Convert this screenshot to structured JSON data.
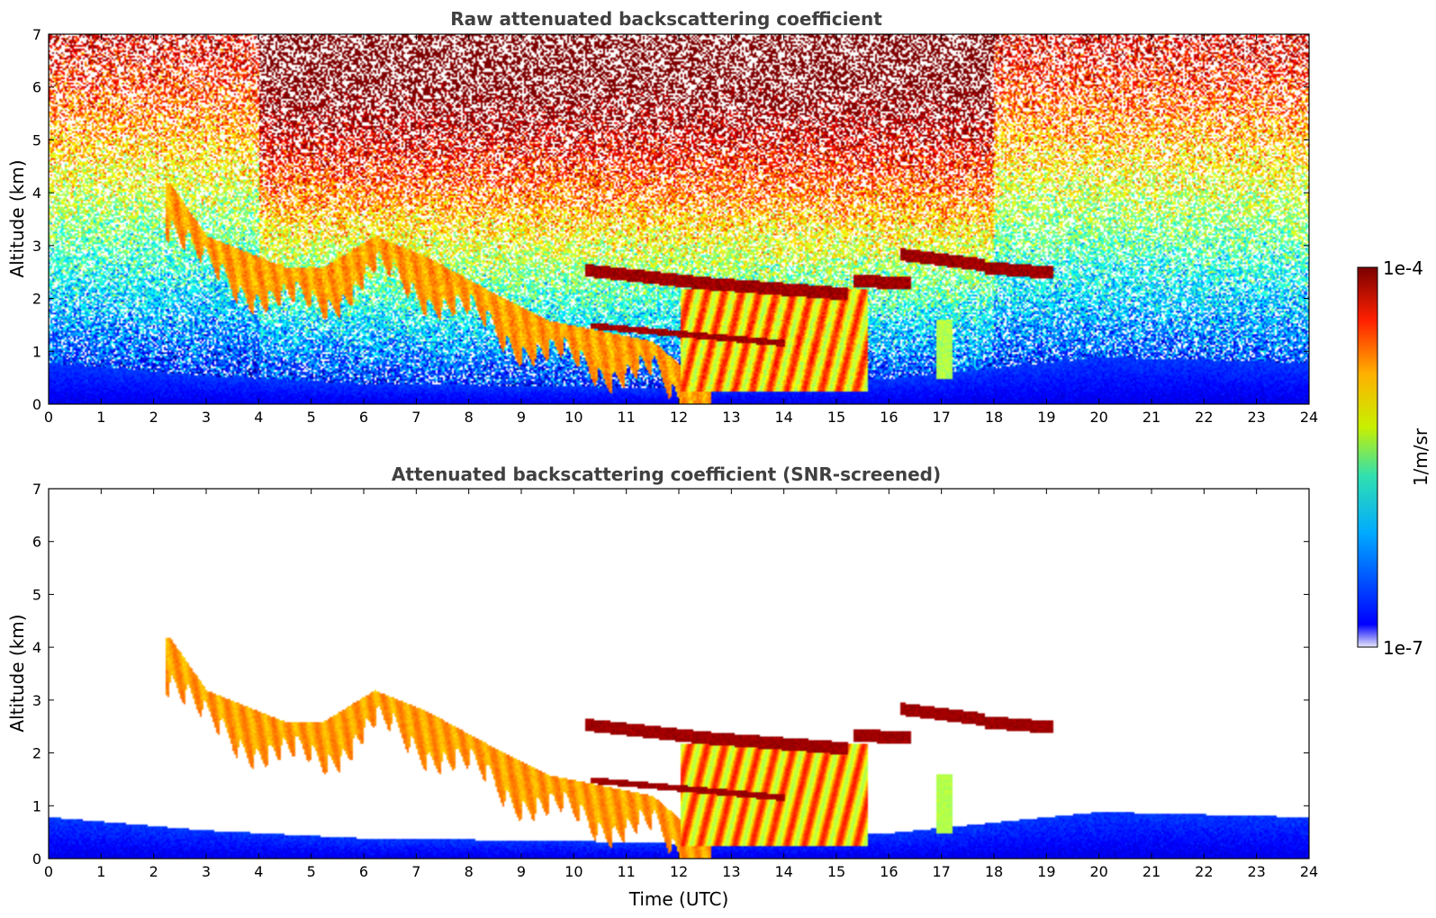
{
  "chart_data": [
    {
      "type": "heatmap",
      "title": "Raw attenuated backscattering coefficient",
      "xlabel": "",
      "ylabel": "Altitude (km)",
      "xlim": [
        0,
        24
      ],
      "ylim": [
        0,
        7
      ],
      "xticks": [
        "0",
        "1",
        "2",
        "3",
        "4",
        "5",
        "6",
        "7",
        "8",
        "9",
        "10",
        "11",
        "12",
        "13",
        "14",
        "15",
        "16",
        "17",
        "18",
        "19",
        "20",
        "21",
        "22",
        "23",
        "24"
      ],
      "yticks": [
        "0",
        "1",
        "2",
        "3",
        "4",
        "5",
        "6",
        "7"
      ],
      "screened": false
    },
    {
      "type": "heatmap",
      "title": "Attenuated backscattering coefficient (SNR-screened)",
      "xlabel": "Time (UTC)",
      "ylabel": "Altitude (km)",
      "xlim": [
        0,
        24
      ],
      "ylim": [
        0,
        7
      ],
      "xticks": [
        "0",
        "1",
        "2",
        "3",
        "4",
        "5",
        "6",
        "7",
        "8",
        "9",
        "10",
        "11",
        "12",
        "13",
        "14",
        "15",
        "16",
        "17",
        "18",
        "19",
        "20",
        "21",
        "22",
        "23",
        "24"
      ],
      "yticks": [
        "0",
        "1",
        "2",
        "3",
        "4",
        "5",
        "6",
        "7"
      ],
      "screened": true
    }
  ],
  "colorbar": {
    "label": "1/m/sr",
    "max_label": "1e-4",
    "min_label": "1e-7",
    "colormap": "jet",
    "scale": "log"
  },
  "features": {
    "aerosol_layer_top_km": [
      [
        2.3,
        4.2
      ],
      [
        3.0,
        3.2
      ],
      [
        4.5,
        2.6
      ],
      [
        5.2,
        2.6
      ],
      [
        6.2,
        3.2
      ],
      [
        7.2,
        2.8
      ],
      [
        8.5,
        2.1
      ],
      [
        9.5,
        1.6
      ],
      [
        10.5,
        1.4
      ],
      [
        11.5,
        1.2
      ],
      [
        12.2,
        0.6
      ]
    ],
    "cloud_layers": [
      {
        "x0": 10.2,
        "x1": 12.5,
        "y0": 2.55,
        "y1": 2.3
      },
      {
        "x0": 12.5,
        "x1": 15.2,
        "y0": 2.3,
        "y1": 2.1
      },
      {
        "x0": 15.3,
        "x1": 16.4,
        "y0": 2.35,
        "y1": 2.3
      },
      {
        "x0": 16.2,
        "x1": 17.8,
        "y0": 2.85,
        "y1": 2.65
      },
      {
        "x0": 17.8,
        "x1": 19.1,
        "y0": 2.6,
        "y1": 2.5
      }
    ],
    "boundary_layer_top_km": [
      [
        0,
        0.8
      ],
      [
        3,
        0.55
      ],
      [
        6,
        0.4
      ],
      [
        10,
        0.35
      ],
      [
        12,
        0.3
      ],
      [
        16,
        0.5
      ],
      [
        18,
        0.7
      ],
      [
        20,
        0.9
      ],
      [
        22,
        0.85
      ],
      [
        24,
        0.8
      ]
    ]
  }
}
